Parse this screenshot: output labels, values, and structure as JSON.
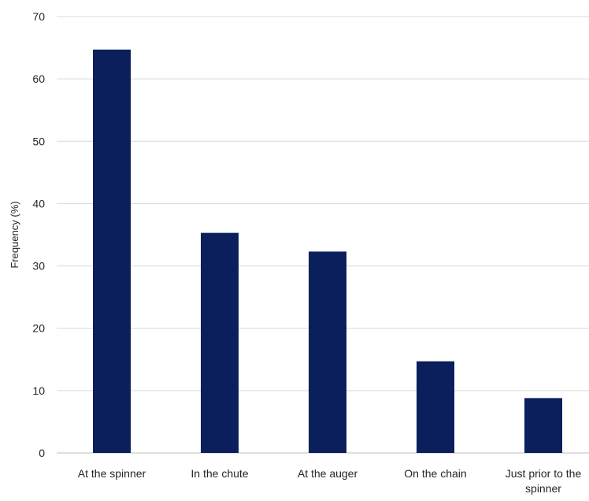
{
  "chart_data": {
    "type": "bar",
    "categories": [
      "At the spinner",
      "In the chute",
      "At the auger",
      "On the chain",
      "Just prior to the spinner"
    ],
    "category_lines": [
      [
        "At the spinner"
      ],
      [
        "In the chute"
      ],
      [
        "At the auger"
      ],
      [
        "On the chain"
      ],
      [
        "Just prior to the",
        "spinner"
      ]
    ],
    "values": [
      64.7,
      35.3,
      32.3,
      14.7,
      8.8
    ],
    "title": "",
    "xlabel": "",
    "ylabel": "Frequency (%)",
    "ylim": [
      0,
      70
    ],
    "yticks": [
      0,
      10,
      20,
      30,
      40,
      50,
      60,
      70
    ],
    "grid": true,
    "legend": "none",
    "bar_color": "#0a1f5c",
    "grid_color": "#d9d9d9",
    "axis_color": "#bfbfbf"
  }
}
